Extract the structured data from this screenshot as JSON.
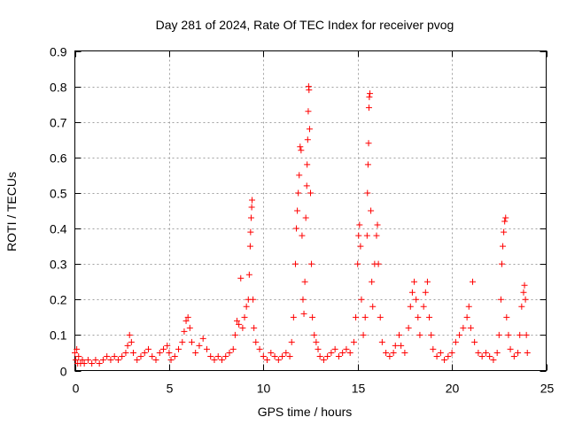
{
  "chart_data": {
    "type": "scatter",
    "title": "Day 281 of 2024, Rate Of TEC Index for receiver pvog",
    "xlabel": "GPS time / hours",
    "ylabel": "ROTI / TECUs",
    "xlim": [
      0,
      25
    ],
    "ylim": [
      0,
      0.9
    ],
    "x_ticks": [
      0,
      5,
      10,
      15,
      20,
      25
    ],
    "x_tick_labels": [
      "0",
      "5",
      "10",
      "15",
      "20",
      "25"
    ],
    "y_ticks": [
      0,
      0.1,
      0.2,
      0.3,
      0.4,
      0.5,
      0.6,
      0.7,
      0.8,
      0.9
    ],
    "y_tick_labels": [
      "0",
      "0.1",
      "0.2",
      "0.3",
      "0.4",
      "0.5",
      "0.6",
      "0.7",
      "0.8",
      "0.9"
    ],
    "grid": true,
    "marker": "plus",
    "color": "#ff0000",
    "series": [
      {
        "points": [
          [
            0.0,
            0.05
          ],
          [
            0.05,
            0.03
          ],
          [
            0.1,
            0.06
          ],
          [
            0.15,
            0.02
          ],
          [
            0.2,
            0.04
          ],
          [
            0.3,
            0.02
          ],
          [
            0.4,
            0.03
          ],
          [
            0.5,
            0.02
          ],
          [
            0.7,
            0.03
          ],
          [
            0.9,
            0.02
          ],
          [
            1.1,
            0.03
          ],
          [
            1.3,
            0.02
          ],
          [
            1.5,
            0.03
          ],
          [
            1.7,
            0.04
          ],
          [
            1.9,
            0.03
          ],
          [
            2.1,
            0.04
          ],
          [
            2.3,
            0.03
          ],
          [
            2.5,
            0.04
          ],
          [
            2.7,
            0.05
          ],
          [
            2.8,
            0.07
          ],
          [
            2.9,
            0.1
          ],
          [
            3.0,
            0.08
          ],
          [
            3.1,
            0.05
          ],
          [
            3.3,
            0.03
          ],
          [
            3.5,
            0.04
          ],
          [
            3.7,
            0.05
          ],
          [
            3.9,
            0.06
          ],
          [
            4.1,
            0.04
          ],
          [
            4.3,
            0.03
          ],
          [
            4.5,
            0.05
          ],
          [
            4.7,
            0.06
          ],
          [
            4.9,
            0.07
          ],
          [
            5.0,
            0.05
          ],
          [
            5.1,
            0.03
          ],
          [
            5.3,
            0.04
          ],
          [
            5.5,
            0.06
          ],
          [
            5.7,
            0.08
          ],
          [
            5.8,
            0.11
          ],
          [
            5.9,
            0.14
          ],
          [
            6.0,
            0.15
          ],
          [
            6.1,
            0.12
          ],
          [
            6.2,
            0.08
          ],
          [
            6.4,
            0.05
          ],
          [
            6.6,
            0.07
          ],
          [
            6.8,
            0.09
          ],
          [
            7.0,
            0.06
          ],
          [
            7.2,
            0.04
          ],
          [
            7.4,
            0.03
          ],
          [
            7.6,
            0.04
          ],
          [
            7.8,
            0.03
          ],
          [
            8.0,
            0.04
          ],
          [
            8.2,
            0.05
          ],
          [
            8.4,
            0.06
          ],
          [
            8.5,
            0.1
          ],
          [
            8.6,
            0.14
          ],
          [
            8.7,
            0.13
          ],
          [
            8.8,
            0.26
          ],
          [
            8.9,
            0.12
          ],
          [
            9.0,
            0.15
          ],
          [
            9.1,
            0.18
          ],
          [
            9.2,
            0.2
          ],
          [
            9.25,
            0.27
          ],
          [
            9.3,
            0.35
          ],
          [
            9.32,
            0.39
          ],
          [
            9.35,
            0.43
          ],
          [
            9.38,
            0.46
          ],
          [
            9.4,
            0.48
          ],
          [
            9.45,
            0.2
          ],
          [
            9.5,
            0.12
          ],
          [
            9.6,
            0.08
          ],
          [
            9.8,
            0.06
          ],
          [
            10.0,
            0.04
          ],
          [
            10.2,
            0.03
          ],
          [
            10.4,
            0.05
          ],
          [
            10.6,
            0.04
          ],
          [
            10.8,
            0.03
          ],
          [
            11.0,
            0.04
          ],
          [
            11.2,
            0.05
          ],
          [
            11.4,
            0.04
          ],
          [
            11.5,
            0.08
          ],
          [
            11.6,
            0.15
          ],
          [
            11.7,
            0.3
          ],
          [
            11.75,
            0.4
          ],
          [
            11.8,
            0.45
          ],
          [
            11.85,
            0.5
          ],
          [
            11.9,
            0.55
          ],
          [
            11.95,
            0.63
          ],
          [
            12.0,
            0.62
          ],
          [
            12.05,
            0.38
          ],
          [
            12.1,
            0.2
          ],
          [
            12.15,
            0.16
          ],
          [
            12.2,
            0.25
          ],
          [
            12.25,
            0.43
          ],
          [
            12.3,
            0.52
          ],
          [
            12.32,
            0.58
          ],
          [
            12.35,
            0.65
          ],
          [
            12.38,
            0.73
          ],
          [
            12.4,
            0.8
          ],
          [
            12.42,
            0.79
          ],
          [
            12.45,
            0.68
          ],
          [
            12.5,
            0.5
          ],
          [
            12.55,
            0.3
          ],
          [
            12.6,
            0.15
          ],
          [
            12.7,
            0.1
          ],
          [
            12.8,
            0.08
          ],
          [
            12.9,
            0.06
          ],
          [
            13.0,
            0.04
          ],
          [
            13.2,
            0.03
          ],
          [
            13.4,
            0.04
          ],
          [
            13.6,
            0.05
          ],
          [
            13.8,
            0.06
          ],
          [
            14.0,
            0.04
          ],
          [
            14.2,
            0.05
          ],
          [
            14.4,
            0.06
          ],
          [
            14.6,
            0.05
          ],
          [
            14.8,
            0.08
          ],
          [
            14.9,
            0.15
          ],
          [
            15.0,
            0.3
          ],
          [
            15.05,
            0.38
          ],
          [
            15.1,
            0.41
          ],
          [
            15.15,
            0.35
          ],
          [
            15.2,
            0.2
          ],
          [
            15.3,
            0.1
          ],
          [
            15.4,
            0.15
          ],
          [
            15.5,
            0.38
          ],
          [
            15.52,
            0.5
          ],
          [
            15.55,
            0.58
          ],
          [
            15.58,
            0.64
          ],
          [
            15.6,
            0.74
          ],
          [
            15.62,
            0.77
          ],
          [
            15.65,
            0.78
          ],
          [
            15.7,
            0.45
          ],
          [
            15.75,
            0.25
          ],
          [
            15.8,
            0.18
          ],
          [
            15.9,
            0.3
          ],
          [
            16.0,
            0.38
          ],
          [
            16.05,
            0.41
          ],
          [
            16.1,
            0.3
          ],
          [
            16.2,
            0.15
          ],
          [
            16.3,
            0.08
          ],
          [
            16.5,
            0.05
          ],
          [
            16.7,
            0.04
          ],
          [
            16.9,
            0.05
          ],
          [
            17.0,
            0.07
          ],
          [
            17.2,
            0.1
          ],
          [
            17.3,
            0.07
          ],
          [
            17.5,
            0.05
          ],
          [
            17.7,
            0.12
          ],
          [
            17.8,
            0.18
          ],
          [
            17.9,
            0.22
          ],
          [
            18.0,
            0.25
          ],
          [
            18.1,
            0.2
          ],
          [
            18.2,
            0.15
          ],
          [
            18.3,
            0.1
          ],
          [
            18.5,
            0.18
          ],
          [
            18.6,
            0.22
          ],
          [
            18.7,
            0.25
          ],
          [
            18.8,
            0.15
          ],
          [
            18.9,
            0.1
          ],
          [
            19.0,
            0.06
          ],
          [
            19.2,
            0.04
          ],
          [
            19.4,
            0.05
          ],
          [
            19.6,
            0.03
          ],
          [
            19.8,
            0.04
          ],
          [
            20.0,
            0.05
          ],
          [
            20.2,
            0.08
          ],
          [
            20.4,
            0.1
          ],
          [
            20.6,
            0.12
          ],
          [
            20.8,
            0.15
          ],
          [
            20.9,
            0.18
          ],
          [
            21.0,
            0.12
          ],
          [
            21.1,
            0.25
          ],
          [
            21.2,
            0.08
          ],
          [
            21.4,
            0.05
          ],
          [
            21.6,
            0.04
          ],
          [
            21.8,
            0.05
          ],
          [
            22.0,
            0.04
          ],
          [
            22.2,
            0.03
          ],
          [
            22.4,
            0.05
          ],
          [
            22.5,
            0.1
          ],
          [
            22.6,
            0.2
          ],
          [
            22.65,
            0.3
          ],
          [
            22.7,
            0.35
          ],
          [
            22.75,
            0.39
          ],
          [
            22.8,
            0.42
          ],
          [
            22.85,
            0.43
          ],
          [
            22.9,
            0.15
          ],
          [
            23.0,
            0.1
          ],
          [
            23.1,
            0.06
          ],
          [
            23.3,
            0.04
          ],
          [
            23.5,
            0.05
          ],
          [
            23.6,
            0.1
          ],
          [
            23.7,
            0.18
          ],
          [
            23.8,
            0.22
          ],
          [
            23.85,
            0.24
          ],
          [
            23.9,
            0.2
          ],
          [
            23.95,
            0.1
          ],
          [
            24.0,
            0.05
          ]
        ]
      }
    ]
  }
}
